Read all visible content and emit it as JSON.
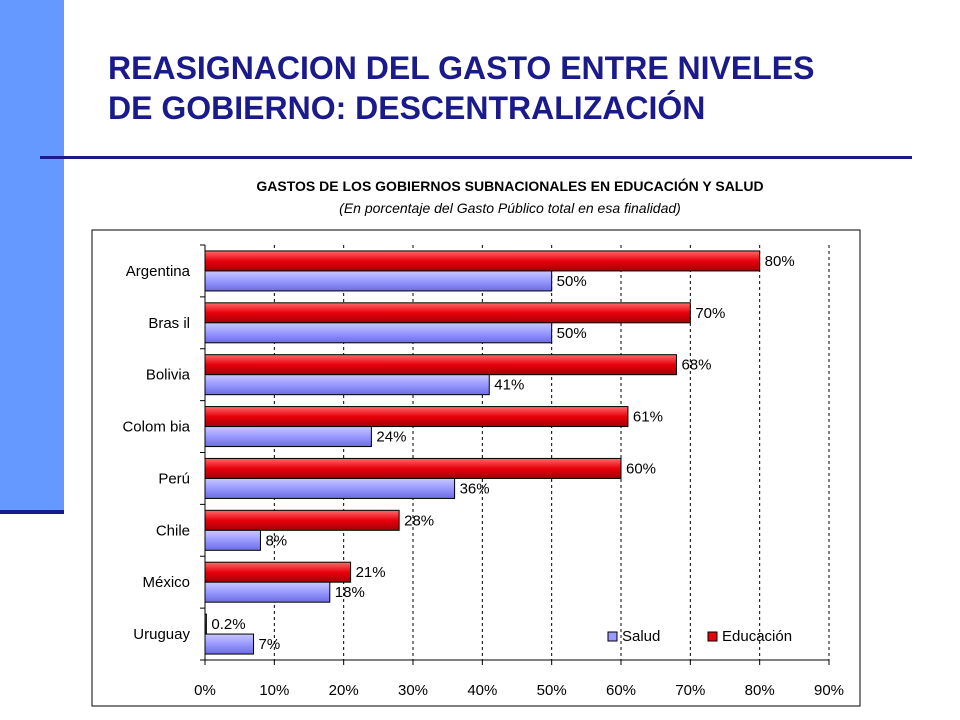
{
  "slide": {
    "title_line1": "REASIGNACION DEL GASTO ENTRE NIVELES",
    "title_line2": "DE GOBIERNO: DESCENTRALIZACIÓN"
  },
  "colors": {
    "sidebar": "#6699ff",
    "title": "#1a1a8c",
    "salud": "#9999ff",
    "educacion": "#e8000b"
  },
  "chart_data": {
    "type": "bar",
    "orientation": "horizontal",
    "title": "GASTOS DE LOS GOBIERNOS SUBNACIONALES EN EDUCACIÓN Y SALUD",
    "subtitle": "(En porcentaje del Gasto Público total en esa finalidad)",
    "categories": [
      "Argentina",
      "Bras il",
      "Bolivia",
      "Colom bia",
      "Perú",
      "Chile",
      "México",
      "Uruguay"
    ],
    "series": [
      {
        "name": "Educación",
        "color": "#e8000b",
        "values": [
          80,
          70,
          68,
          61,
          60,
          28,
          21,
          0.2
        ],
        "labels": [
          "80%",
          "70%",
          "68%",
          "61%",
          "60%",
          "28%",
          "21%",
          "0.2%"
        ]
      },
      {
        "name": "Salud",
        "color": "#9999ff",
        "values": [
          50,
          50,
          41,
          24,
          36,
          8,
          18,
          7
        ],
        "labels": [
          "50%",
          "50%",
          "41%",
          "24%",
          "36%",
          "8%",
          "18%",
          "7%"
        ]
      }
    ],
    "xlim": [
      0,
      90
    ],
    "xticks": [
      "0%",
      "10%",
      "20%",
      "30%",
      "40%",
      "50%",
      "60%",
      "70%",
      "80%",
      "90%"
    ],
    "legend": {
      "position": "bottom-right",
      "order": [
        "Salud",
        "Educación"
      ]
    },
    "grid": "vertical-dashed"
  }
}
